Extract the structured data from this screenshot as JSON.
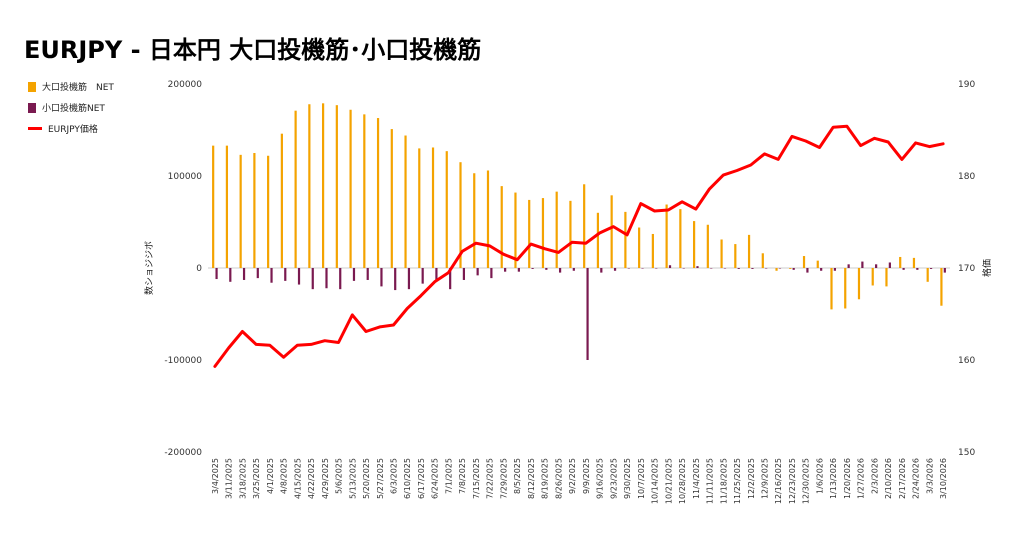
{
  "title": "EURJPY - 日本円 大口投機筋･小口投機筋",
  "legend": [
    {
      "label": "大口投機筋　NET",
      "color": "#f4a300",
      "kind": "box"
    },
    {
      "label": "小口投機筋NET",
      "color": "#7a1a50",
      "kind": "box"
    },
    {
      "label": "EURJPY価格",
      "color": "#ff0000",
      "kind": "line"
    }
  ],
  "chart_data": {
    "type": "bar+line",
    "ylabel_left": "数ショジジボ",
    "ylabel_right": "格価",
    "ylim_left": [
      -200000,
      200000
    ],
    "ylim_right": [
      150,
      190
    ],
    "yticks_left": [
      "200000",
      "100000",
      "0",
      "-100000",
      "-200000"
    ],
    "yticks_right": [
      "190",
      "180",
      "170",
      "160",
      "150"
    ],
    "categories": [
      "3/4/2025",
      "3/11/2025",
      "3/18/2025",
      "3/25/2025",
      "4/1/2025",
      "4/8/2025",
      "4/15/2025",
      "4/22/2025",
      "4/29/2025",
      "5/6/2025",
      "5/13/2025",
      "5/20/2025",
      "5/27/2025",
      "6/3/2025",
      "6/10/2025",
      "6/17/2025",
      "6/24/2025",
      "7/1/2025",
      "7/8/2025",
      "7/15/2025",
      "7/22/2025",
      "7/29/2025",
      "8/5/2025",
      "8/12/2025",
      "8/19/2025",
      "8/26/2025",
      "9/2/2025",
      "9/9/2025",
      "9/16/2025",
      "9/23/2025",
      "9/30/2025",
      "10/7/2025",
      "10/14/2025",
      "10/21/2025",
      "10/28/2025",
      "11/4/2025",
      "11/11/2025",
      "11/18/2025",
      "11/25/2025",
      "12/2/2025",
      "12/9/2025",
      "12/16/2025",
      "12/23/2025",
      "12/30/2025",
      "1/6/2026",
      "1/13/2026",
      "1/20/2026",
      "1/27/2026",
      "2/3/2026",
      "2/10/2026",
      "2/17/2026",
      "2/24/2026",
      "3/3/2026",
      "3/10/2026"
    ],
    "series": [
      {
        "name": "大口投機筋　NET",
        "axis": "left",
        "type": "bar",
        "color": "#f4a300",
        "values": [
          133000,
          133000,
          123000,
          125000,
          122000,
          146000,
          171000,
          178000,
          179000,
          177000,
          172000,
          167000,
          163000,
          151000,
          144000,
          130000,
          131000,
          127000,
          115000,
          103000,
          106000,
          89000,
          82000,
          74000,
          76000,
          83000,
          73000,
          91000,
          60000,
          79000,
          61000,
          44000,
          37000,
          69000,
          64000,
          51000,
          47000,
          31000,
          26000,
          36000,
          16000,
          -3000,
          -1000,
          13000,
          8000,
          -45000,
          -44000,
          -34000,
          -19000,
          -20000,
          12000,
          11000,
          -15000,
          -41000
        ]
      },
      {
        "name": "小口投機筋NET",
        "axis": "left",
        "type": "bar",
        "color": "#7a1a50",
        "values": [
          -12000,
          -15000,
          -13000,
          -11000,
          -16000,
          -14000,
          -18000,
          -23000,
          -22000,
          -23000,
          -14000,
          -13000,
          -20000,
          -24000,
          -23000,
          -17000,
          -13000,
          -23000,
          -13000,
          -8000,
          -11000,
          -4000,
          -4000,
          -1000,
          -2000,
          -5000,
          -3000,
          -100000,
          -5000,
          -3000,
          0,
          0,
          0,
          3000,
          0,
          2000,
          0,
          0,
          -1000,
          -1000,
          0,
          0,
          -2000,
          -5000,
          -3000,
          -3000,
          4000,
          7000,
          4000,
          6000,
          -2000,
          -2000,
          -1000,
          -5000
        ]
      },
      {
        "name": "EURJPY価格",
        "axis": "right",
        "type": "line",
        "color": "#ff0000",
        "values": [
          159.3,
          161.3,
          163.1,
          161.7,
          161.6,
          160.3,
          161.6,
          161.7,
          162.1,
          161.9,
          164.9,
          163.1,
          163.6,
          163.8,
          165.6,
          167.0,
          168.5,
          169.5,
          171.8,
          172.7,
          172.4,
          171.5,
          170.9,
          172.6,
          172.1,
          171.7,
          172.8,
          172.7,
          173.8,
          174.5,
          173.6,
          177.0,
          176.2,
          176.3,
          177.2,
          176.4,
          178.6,
          180.1,
          180.6,
          181.2,
          182.4,
          181.8,
          184.3,
          183.8,
          183.1,
          185.3,
          185.4,
          183.3,
          184.1,
          183.7,
          181.8,
          183.6,
          183.2,
          183.5
        ]
      }
    ]
  }
}
